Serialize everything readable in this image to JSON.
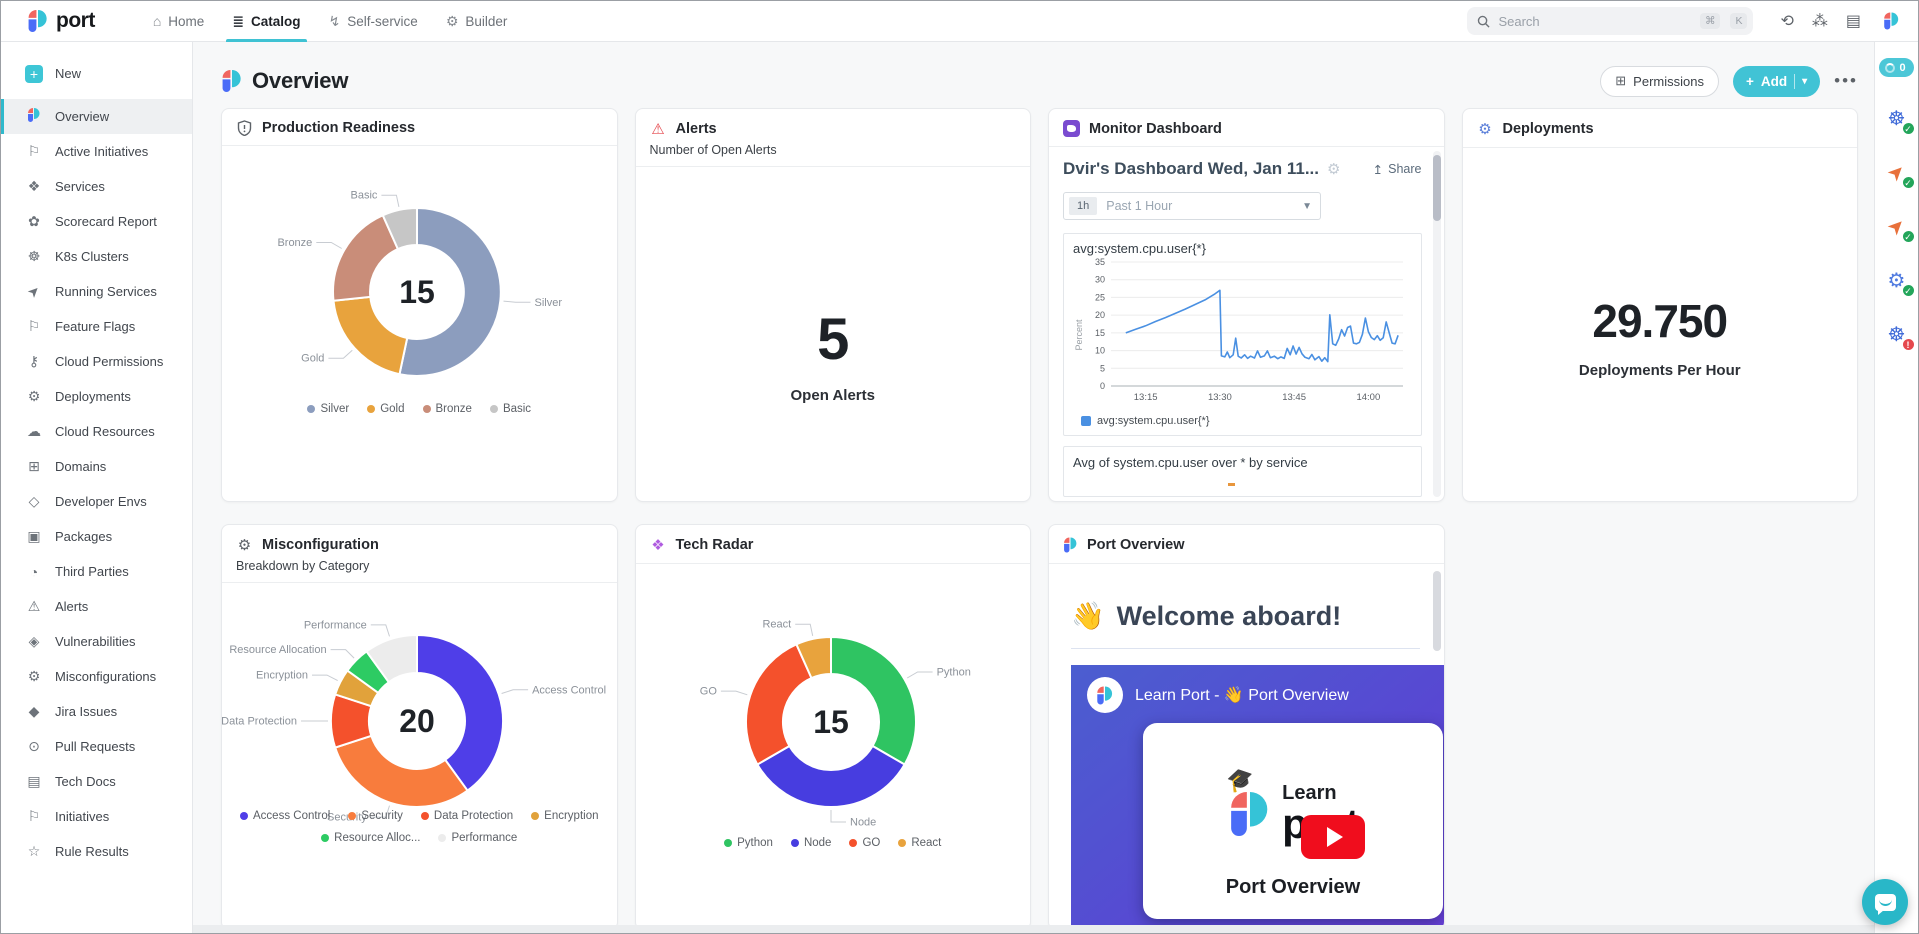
{
  "topnav": {
    "brand": "port",
    "items": [
      {
        "label": "Home"
      },
      {
        "label": "Catalog",
        "active": true
      },
      {
        "label": "Self-service"
      },
      {
        "label": "Builder"
      }
    ],
    "search": {
      "placeholder": "Search",
      "shortcut_keys": [
        "⌘",
        "K"
      ]
    }
  },
  "sidebar": {
    "new_label": "New",
    "items": [
      {
        "label": "Overview",
        "icon": "port-logo-icon",
        "glyph": "",
        "active": true
      },
      {
        "label": "Active Initiatives",
        "icon": "flag-icon",
        "glyph": "⚐"
      },
      {
        "label": "Services",
        "icon": "services-icon",
        "glyph": "❖"
      },
      {
        "label": "Scorecard Report",
        "icon": "scorecard-icon",
        "glyph": "✿"
      },
      {
        "label": "K8s Clusters",
        "icon": "k8s-icon",
        "glyph": "☸"
      },
      {
        "label": "Running Services",
        "icon": "rocket-icon",
        "glyph": "➤",
        "rot": true
      },
      {
        "label": "Feature Flags",
        "icon": "flag-icon",
        "glyph": "⚐"
      },
      {
        "label": "Cloud Permissions",
        "icon": "lock-icon",
        "glyph": "⚷"
      },
      {
        "label": "Deployments",
        "icon": "deployment-icon",
        "glyph": "⚙"
      },
      {
        "label": "Cloud Resources",
        "icon": "cloud-icon",
        "glyph": "☁"
      },
      {
        "label": "Domains",
        "icon": "domains-icon",
        "glyph": "⊞"
      },
      {
        "label": "Developer Envs",
        "icon": "cube-icon",
        "glyph": "◇"
      },
      {
        "label": "Packages",
        "icon": "package-icon",
        "glyph": "▣"
      },
      {
        "label": "Third Parties",
        "icon": "third-party-icon",
        "glyph": "◔"
      },
      {
        "label": "Alerts",
        "icon": "warning-icon",
        "glyph": "⚠"
      },
      {
        "label": "Vulnerabilities",
        "icon": "shield-icon",
        "glyph": "◈"
      },
      {
        "label": "Misconfigurations",
        "icon": "gear-alert-icon",
        "glyph": "⚙"
      },
      {
        "label": "Jira Issues",
        "icon": "jira-icon",
        "glyph": "◆"
      },
      {
        "label": "Pull Requests",
        "icon": "github-icon",
        "glyph": "⊙"
      },
      {
        "label": "Tech Docs",
        "icon": "doc-icon",
        "glyph": "▤"
      },
      {
        "label": "Initiatives",
        "icon": "flag-icon",
        "glyph": "⚐"
      },
      {
        "label": "Rule Results",
        "icon": "star-icon",
        "glyph": "☆"
      }
    ]
  },
  "page": {
    "title": "Overview",
    "permissions_label": "Permissions",
    "add_label": "Add",
    "more_label": "•••",
    "sync_count": "0"
  },
  "widgets": {
    "production_readiness": {
      "title": "Production Readiness"
    },
    "alerts": {
      "title": "Alerts",
      "subtitle": "Number of Open Alerts",
      "value": "5",
      "label": "Open Alerts"
    },
    "monitor": {
      "title": "Monitor Dashboard",
      "dashboard_title": "Dvir's Dashboard Wed, Jan 11...",
      "share_label": "Share",
      "time_chip": "1h",
      "time_label": "Past 1 Hour",
      "panel2_title": "Avg of system.cpu.user over * by service"
    },
    "deployments": {
      "title": "Deployments",
      "value": "29.750",
      "label": "Deployments Per Hour"
    },
    "misconfiguration": {
      "title": "Misconfiguration",
      "subtitle": "Breakdown by Category"
    },
    "tech_radar": {
      "title": "Tech Radar"
    },
    "port_overview": {
      "title": "Port Overview",
      "heading_emoji": "👋",
      "heading": "Welcome aboard!",
      "video_title": "Learn Port - 👋 Port Overview",
      "video_learn": "Learn",
      "video_port": "port",
      "video_cap_emoji": "🎓",
      "video_caption": "Port Overview"
    }
  },
  "right_rail": {
    "items": [
      {
        "icon": "k8s-cluster-icon",
        "glyph": "☸",
        "color": "#3f6ad8",
        "status": "ok"
      },
      {
        "icon": "rocket-icon",
        "glyph": "➤",
        "color": "#e8703a",
        "status": "ok",
        "rot": true
      },
      {
        "icon": "rocket-icon",
        "glyph": "➤",
        "color": "#e8703a",
        "status": "ok",
        "rot": true
      },
      {
        "icon": "deployment-icon",
        "glyph": "⚙",
        "color": "#4f7ae0",
        "status": "ok"
      },
      {
        "icon": "k8s-cluster-icon",
        "glyph": "☸",
        "color": "#3f6ad8",
        "status": "error"
      }
    ]
  },
  "colors": {
    "accent_teal": "#3fc2d3",
    "alert_red": "#e5484d",
    "datadog_purple": "#7a4bd0",
    "line_blue": "#4a90e2"
  },
  "chart_data": [
    {
      "type": "pie",
      "title": "Production Readiness",
      "center_total": 15,
      "labels": [
        "Silver",
        "Gold",
        "Bronze",
        "Basic"
      ],
      "values": [
        8,
        3,
        3,
        1
      ],
      "colors": [
        "#8c9dbe",
        "#e8a33d",
        "#c98d79",
        "#c6c6c6"
      ],
      "legend_position": "bottom"
    },
    {
      "type": "line",
      "title": "avg:system.cpu.user{*}",
      "ylabel": "Percent",
      "ylim": [
        0,
        35
      ],
      "y_step": 5,
      "xlim": [
        8,
        67
      ],
      "x_tick_pos": [
        15,
        30,
        45,
        60
      ],
      "x_ticks": [
        "13:15",
        "13:30",
        "13:45",
        "14:00"
      ],
      "grid": true,
      "legend_position": "bottom",
      "series": [
        {
          "name": "avg:system.cpu.user{*}",
          "color": "#4a90e2",
          "points": [
            [
              11,
              15
            ],
            [
              13,
              16
            ],
            [
              15,
              17
            ],
            [
              17,
              18.2
            ],
            [
              19,
              19.3
            ],
            [
              21,
              20.5
            ],
            [
              23,
              21.7
            ],
            [
              25,
              23
            ],
            [
              27,
              24.3
            ],
            [
              29,
              26
            ],
            [
              30,
              27
            ],
            [
              30.3,
              8.5
            ],
            [
              31,
              8.2
            ],
            [
              31.5,
              9.6
            ],
            [
              32,
              8
            ],
            [
              32.7,
              8.8
            ],
            [
              33.2,
              13.5
            ],
            [
              33.7,
              8.4
            ],
            [
              34.3,
              7.9
            ],
            [
              35,
              8.8
            ],
            [
              35.6,
              7.8
            ],
            [
              36.2,
              8.4
            ],
            [
              37,
              7.9
            ],
            [
              37.6,
              9.9
            ],
            [
              38.2,
              8.1
            ],
            [
              39,
              8.5
            ],
            [
              39.6,
              9.9
            ],
            [
              40.2,
              8
            ],
            [
              41,
              8.4
            ],
            [
              41.7,
              7.7
            ],
            [
              42.3,
              8.2
            ],
            [
              43,
              7.8
            ],
            [
              43.6,
              10.6
            ],
            [
              44.2,
              8.8
            ],
            [
              44.8,
              11.3
            ],
            [
              45.4,
              9
            ],
            [
              46,
              10.9
            ],
            [
              46.6,
              9.1
            ],
            [
              47.2,
              8.1
            ],
            [
              48,
              7.7
            ],
            [
              48.6,
              8.9
            ],
            [
              49.2,
              7.4
            ],
            [
              50,
              8.3
            ],
            [
              50.6,
              7
            ],
            [
              51.2,
              8
            ],
            [
              51.8,
              6.9
            ],
            [
              52.2,
              20.1
            ],
            [
              52.8,
              11.9
            ],
            [
              53.4,
              11.5
            ],
            [
              54,
              13.3
            ],
            [
              54.6,
              15.9
            ],
            [
              55.2,
              14.1
            ],
            [
              55.8,
              16.5
            ],
            [
              56.4,
              16.9
            ],
            [
              57,
              12.1
            ],
            [
              57.6,
              11.9
            ],
            [
              58.2,
              12.3
            ],
            [
              58.8,
              14.6
            ],
            [
              59.4,
              19.2
            ],
            [
              60,
              15.3
            ],
            [
              60.6,
              13.7
            ],
            [
              61.2,
              13.1
            ],
            [
              61.8,
              14.2
            ],
            [
              62.4,
              12.9
            ],
            [
              63,
              13.6
            ],
            [
              63.6,
              18.1
            ],
            [
              64.2,
              15.1
            ],
            [
              64.8,
              12.1
            ],
            [
              65.4,
              11.9
            ],
            [
              66,
              14.3
            ]
          ]
        }
      ]
    },
    {
      "type": "pie",
      "title": "Misconfiguration - Breakdown by Category",
      "center_total": 20,
      "labels": [
        "Access Control",
        "Security",
        "Data Protection",
        "Encryption",
        "Resource Allocation",
        "Performance"
      ],
      "legend_labels": [
        "Access Control",
        "Security",
        "Data Protection",
        "Encryption",
        "Resource Alloc...",
        "Performance"
      ],
      "values": [
        8,
        6,
        2,
        1,
        1,
        2
      ],
      "colors": [
        "#4f3ee8",
        "#f87c3d",
        "#f4512c",
        "#e1a23b",
        "#2dcb63",
        "#ececec"
      ],
      "legend_position": "bottom"
    },
    {
      "type": "pie",
      "title": "Tech Radar",
      "center_total": 15,
      "labels": [
        "Python",
        "Node",
        "GO",
        "React"
      ],
      "values": [
        5,
        5,
        4,
        1
      ],
      "colors": [
        "#2fc462",
        "#473de0",
        "#f4512c",
        "#e8a33d"
      ],
      "legend_position": "bottom"
    }
  ]
}
